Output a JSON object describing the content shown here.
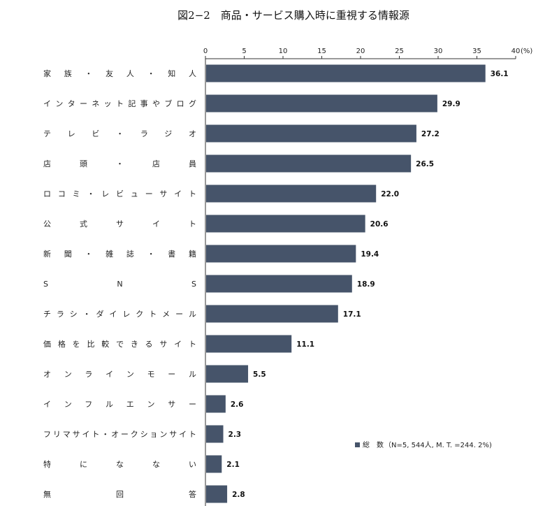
{
  "chart_data": {
    "type": "bar",
    "orientation": "horizontal",
    "title": "図2−2　商品・サービス購入時に重視する情報源",
    "unit_label": "(%)",
    "xlim": [
      0,
      40
    ],
    "ticks": [
      0,
      5,
      10,
      15,
      20,
      25,
      30,
      35,
      40
    ],
    "grid": false,
    "legend_position": "bottom-right",
    "bar_color": "#46546a",
    "categories": [
      "家族・友人・知人",
      "インターネット記事やブログ",
      "テレビ・ラジオ",
      "店頭・店員",
      "ロコミ・レビューサイト",
      "公式サイト",
      "新聞・雑誌・書籍",
      "SNS",
      "チラシ・ダイレクトメール",
      "価格を比較できるサイト",
      "オンラインモール",
      "インフルエンサー",
      "フリマサイト・オークションサイト",
      "特になない",
      "無回答"
    ],
    "series": [
      {
        "name": "総　数",
        "values": [
          36.1,
          29.9,
          27.2,
          26.5,
          22.0,
          20.6,
          19.4,
          18.9,
          17.1,
          11.1,
          5.5,
          2.6,
          2.3,
          2.1,
          2.8
        ],
        "labels": [
          "36.1",
          "29.9",
          "27.2",
          "26.5",
          "22.0",
          "20.6",
          "19.4",
          "18.9",
          "17.1",
          "11.1",
          "5.5",
          "2.6",
          "2.3",
          "2.1",
          "2.8"
        ]
      }
    ],
    "legend": {
      "label": "総　数",
      "note": "（N=5, 544人, M. T. =244. 2%)"
    }
  }
}
